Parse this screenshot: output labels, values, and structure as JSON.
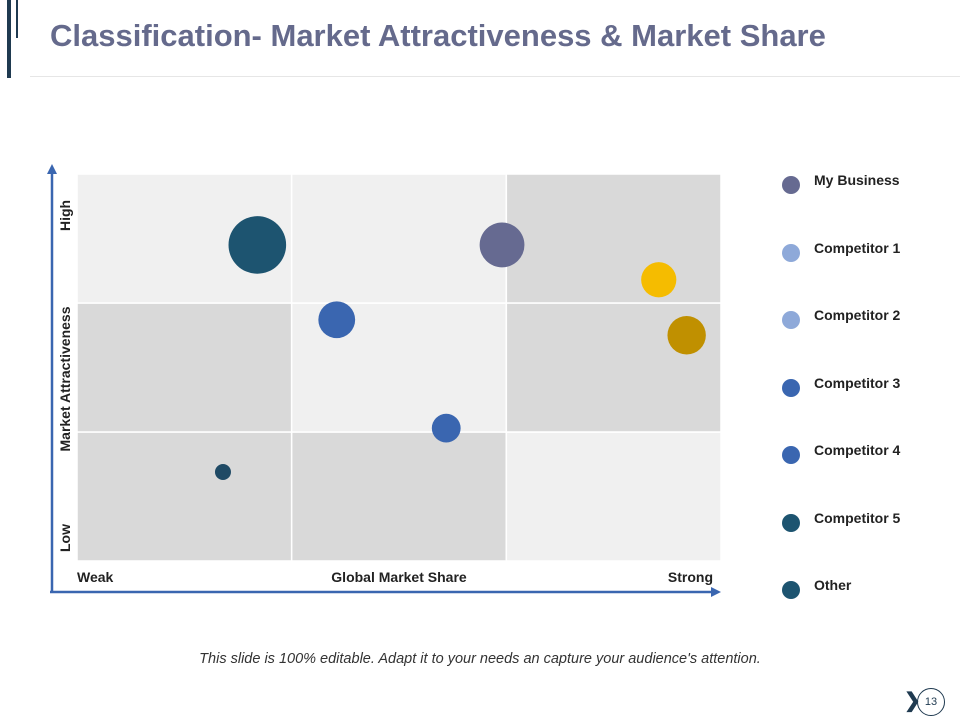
{
  "title": "Classification- Market Attractiveness & Market Share",
  "footer_note": "This slide is 100% editable. Adapt it to your needs an capture your audience's attention.",
  "page_number": "13",
  "chart_data": {
    "type": "scatter",
    "title": "Classification- Market Attractiveness & Market Share",
    "xlabel": "Global Market Share",
    "ylabel": "Market Attractiveness",
    "x_low_label": "Weak",
    "x_high_label": "Strong",
    "y_low_label": "Low",
    "y_high_label": "High",
    "xlim": [
      0,
      3
    ],
    "ylim": [
      0,
      3
    ],
    "grid": "3x3",
    "cells": [
      {
        "col": 0,
        "row": 0,
        "color": "#d9d9d9"
      },
      {
        "col": 1,
        "row": 0,
        "color": "#d9d9d9"
      },
      {
        "col": 2,
        "row": 0,
        "color": "#f0f0f0"
      },
      {
        "col": 0,
        "row": 1,
        "color": "#d9d9d9"
      },
      {
        "col": 1,
        "row": 1,
        "color": "#f0f0f0"
      },
      {
        "col": 2,
        "row": 1,
        "color": "#d9d9d9"
      },
      {
        "col": 0,
        "row": 2,
        "color": "#f0f0f0"
      },
      {
        "col": 1,
        "row": 2,
        "color": "#f0f0f0"
      },
      {
        "col": 2,
        "row": 2,
        "color": "#d9d9d9"
      }
    ],
    "bubbles": [
      {
        "name": "bubble-teal-large",
        "x": 0.84,
        "y": 2.45,
        "size": 3.6,
        "color": "#1d5470"
      },
      {
        "name": "bubble-purple",
        "x": 1.98,
        "y": 2.45,
        "size": 2.8,
        "color": "#666a91"
      },
      {
        "name": "bubble-yellow",
        "x": 2.71,
        "y": 2.18,
        "size": 2.2,
        "color": "#f5bc00"
      },
      {
        "name": "bubble-gold",
        "x": 2.84,
        "y": 1.75,
        "size": 2.4,
        "color": "#c09000"
      },
      {
        "name": "bubble-blue-mid",
        "x": 1.21,
        "y": 1.87,
        "size": 2.3,
        "color": "#3a66b0"
      },
      {
        "name": "bubble-blue-low",
        "x": 1.72,
        "y": 1.03,
        "size": 1.8,
        "color": "#3a66b0"
      },
      {
        "name": "bubble-teal-small",
        "x": 0.68,
        "y": 0.69,
        "size": 1.0,
        "color": "#1f4a65"
      }
    ]
  },
  "legend": [
    {
      "label": "My Business",
      "color": "#666a91"
    },
    {
      "label": "Competitor 1",
      "color": "#8ea9d9"
    },
    {
      "label": "Competitor 2",
      "color": "#8ea9d9"
    },
    {
      "label": "Competitor 3",
      "color": "#3a66b0"
    },
    {
      "label": "Competitor 4",
      "color": "#3a66b0"
    },
    {
      "label": "Competitor 5",
      "color": "#1d5470"
    },
    {
      "label": "Other",
      "color": "#1d5470"
    }
  ],
  "colors": {
    "axis": "#3a66b0",
    "title": "#656a8c",
    "accent": "#1f3a50"
  }
}
